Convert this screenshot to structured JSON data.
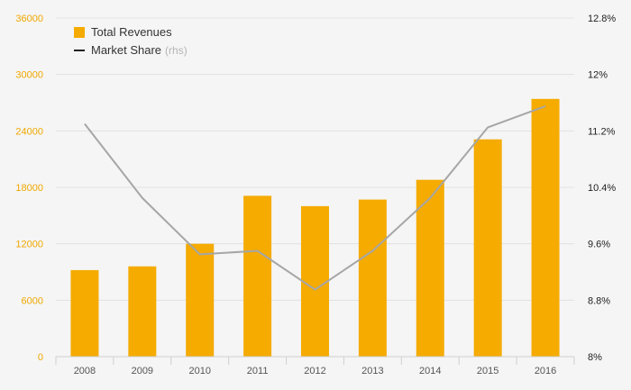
{
  "chart_data": {
    "type": "bar",
    "categories": [
      "2008",
      "2009",
      "2010",
      "2011",
      "2012",
      "2013",
      "2014",
      "2015",
      "2016"
    ],
    "series": [
      {
        "name": "Total Revenues",
        "type": "bar",
        "axis": "left",
        "color": "#f5ab00",
        "values": [
          9200,
          9600,
          12000,
          17100,
          16000,
          16700,
          18800,
          23100,
          27400
        ]
      },
      {
        "name": "Market Share",
        "name_note": "(rhs)",
        "type": "line",
        "axis": "right",
        "color": "#a6a6a6",
        "values": [
          11.3,
          10.25,
          9.45,
          9.5,
          8.95,
          9.5,
          10.25,
          11.25,
          11.55
        ]
      }
    ],
    "y_left": {
      "ylim": [
        0,
        36000
      ],
      "ticks": [
        "0",
        "6000",
        "12000",
        "18000",
        "24000",
        "30000",
        "36000"
      ]
    },
    "y_right": {
      "ylim": [
        8,
        12.8
      ],
      "ticks": [
        "8%",
        "8.8%",
        "9.6%",
        "10.4%",
        "11.2%",
        "12%",
        "12.8%"
      ]
    },
    "grid": true,
    "legend_position": "top-left"
  },
  "colors": {
    "bar": "#f5ab00",
    "line": "#a6a6a6",
    "left_axis_text": "#f0a800",
    "right_axis_text": "#222222",
    "legend_line_swatch": "#222222"
  }
}
